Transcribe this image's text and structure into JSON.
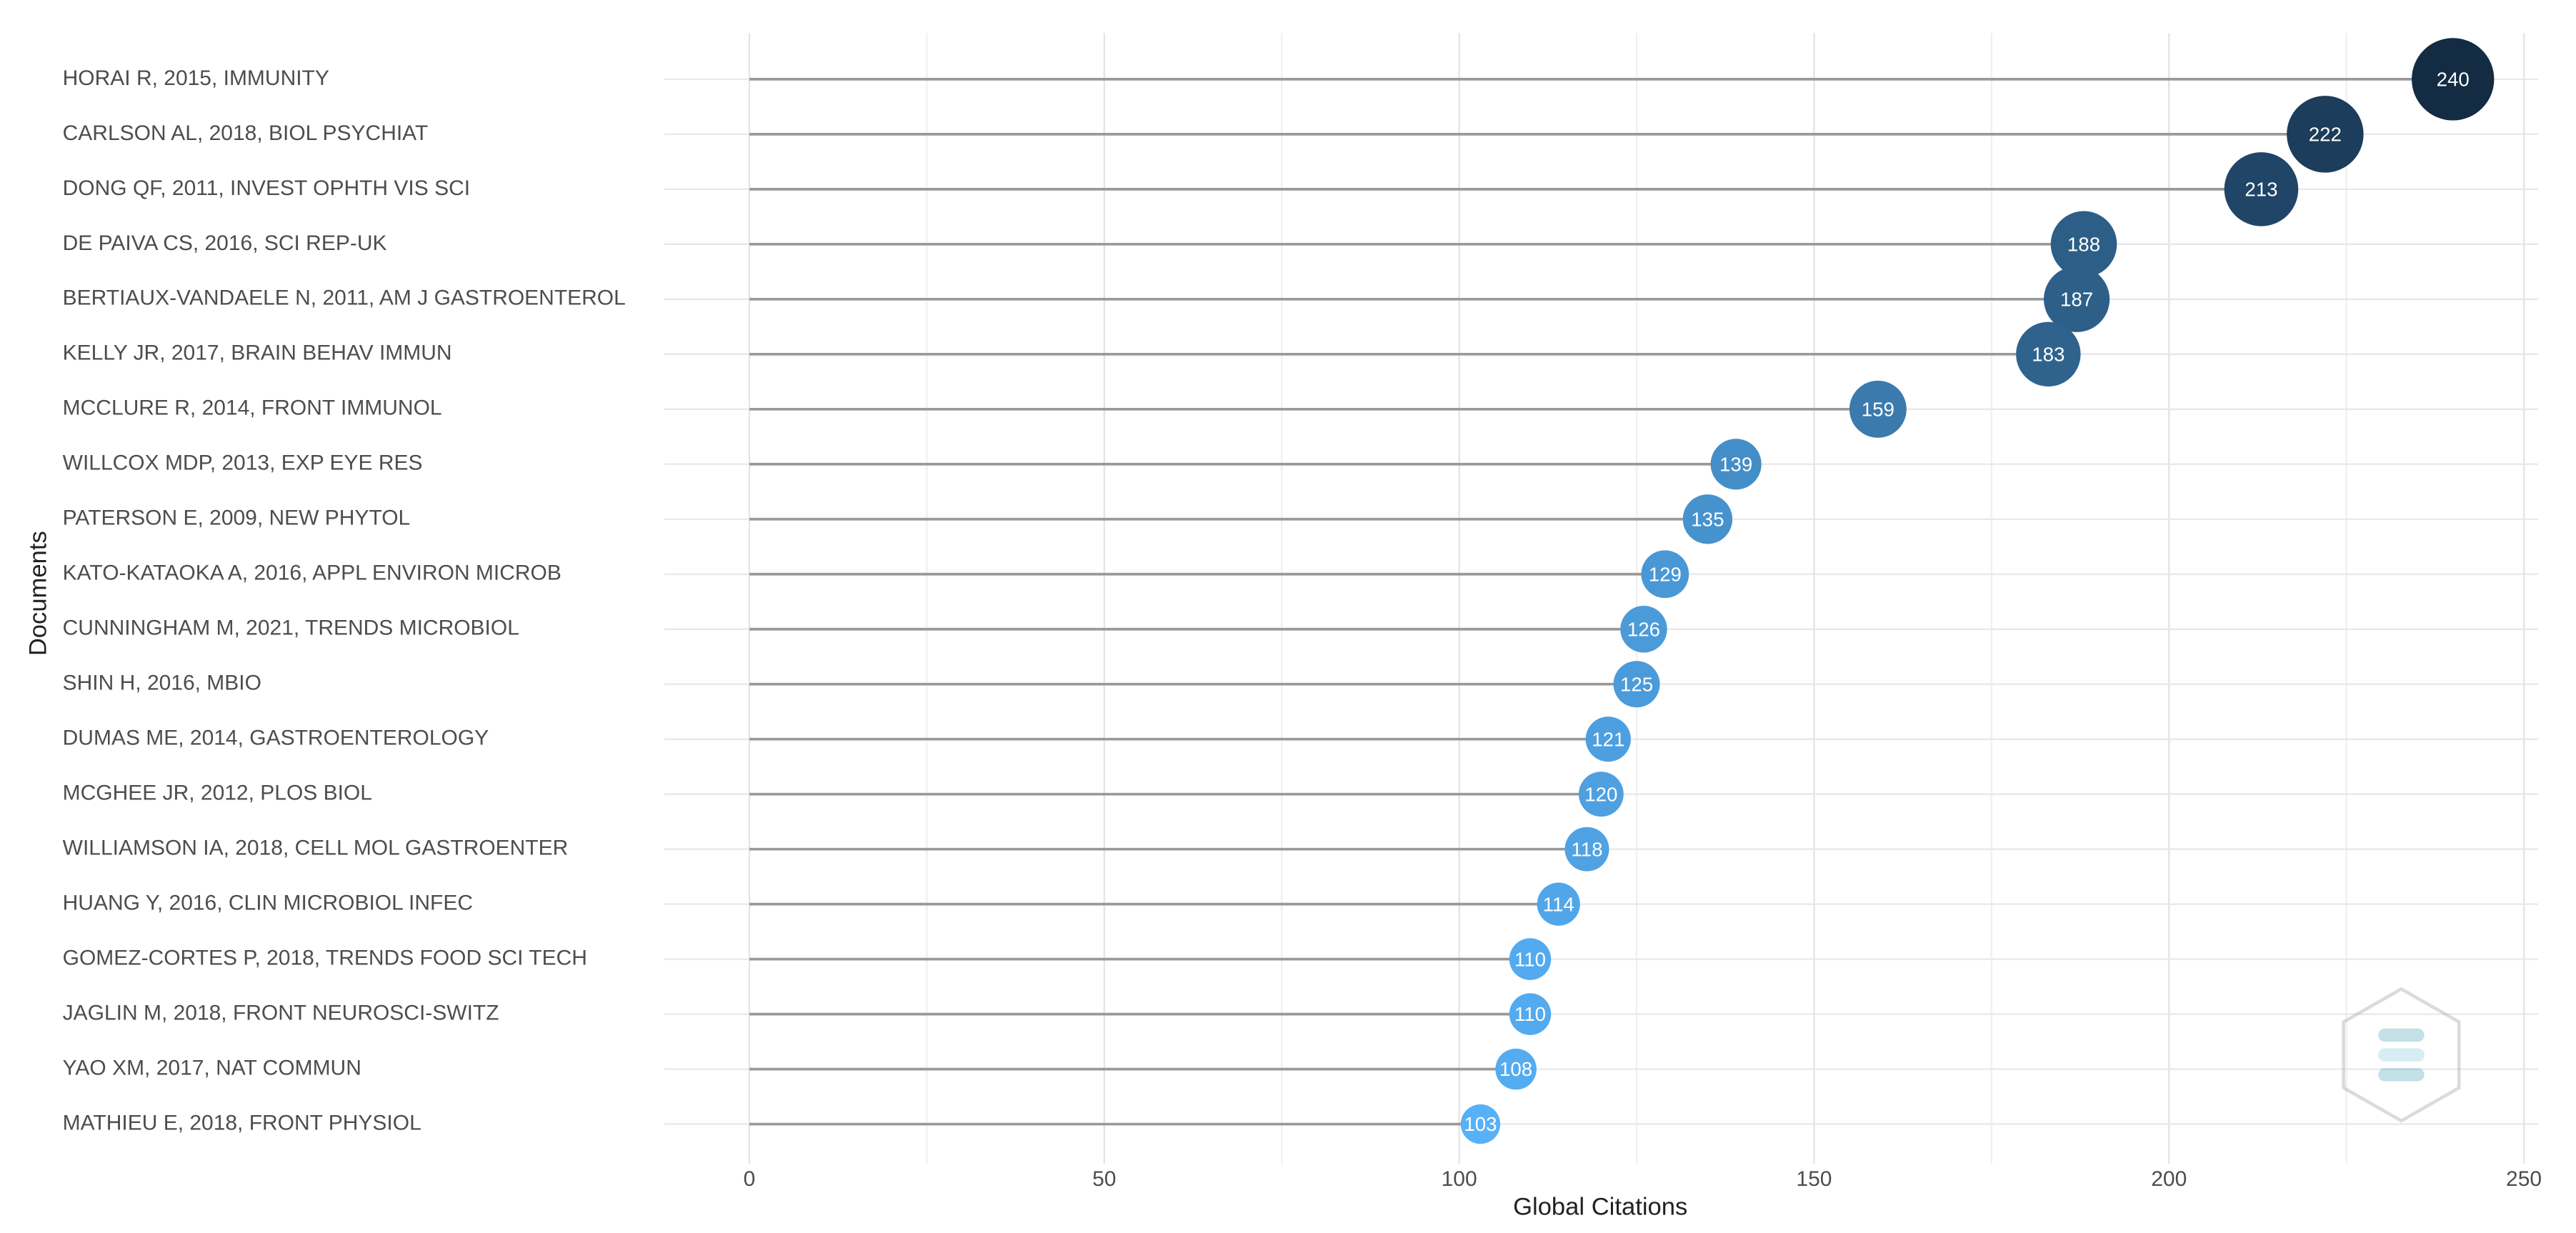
{
  "chart_data": {
    "type": "lollipop",
    "x_label": "Global Citations",
    "y_label": "Documents",
    "categories": [
      "HORAI R, 2015, IMMUNITY",
      "CARLSON AL, 2018, BIOL PSYCHIAT",
      "DONG QF, 2011, INVEST OPHTH VIS SCI",
      "DE PAIVA CS, 2016, SCI REP-UK",
      "BERTIAUX-VANDAELE N, 2011, AM J GASTROENTEROL",
      "KELLY JR, 2017, BRAIN BEHAV IMMUN",
      "MCCLURE R, 2014, FRONT IMMUNOL",
      "WILLCOX MDP, 2013, EXP EYE RES",
      "PATERSON E, 2009, NEW PHYTOL",
      "KATO-KATAOKA A, 2016, APPL ENVIRON MICROB",
      "CUNNINGHAM M, 2021, TRENDS MICROBIOL",
      "SHIN H, 2016, MBIO",
      "DUMAS ME, 2014, GASTROENTEROLOGY",
      "MCGHEE JR, 2012, PLOS BIOL",
      "WILLIAMSON IA, 2018, CELL MOL GASTROENTER",
      "HUANG Y, 2016, CLIN MICROBIOL INFEC",
      "GOMEZ-CORTES P, 2018, TRENDS FOOD SCI TECH",
      "JAGLIN M, 2018, FRONT NEUROSCI-SWITZ",
      "YAO XM, 2017, NAT COMMUN",
      "MATHIEU E, 2018, FRONT PHYSIOL"
    ],
    "values": [
      240,
      222,
      213,
      188,
      187,
      183,
      159,
      139,
      135,
      129,
      126,
      125,
      121,
      120,
      118,
      114,
      110,
      110,
      108,
      103
    ],
    "xlim": [
      -12,
      252
    ],
    "xticks": [
      0,
      50,
      100,
      150,
      200,
      250
    ],
    "grid": true,
    "color_low": "#56b1f7",
    "color_high": "#132b43",
    "line_color": "#999999"
  }
}
